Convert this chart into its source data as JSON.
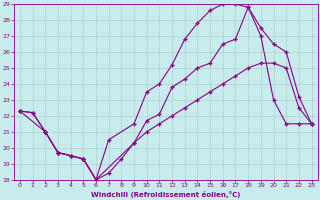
{
  "xlabel": "Windchill (Refroidissement éolien,°C)",
  "bg_color": "#c8ecec",
  "grid_color": "#b0d0d0",
  "line_color": "#880088",
  "xlim": [
    -0.5,
    23.5
  ],
  "ylim": [
    18,
    29
  ],
  "xticks": [
    0,
    1,
    2,
    3,
    4,
    5,
    6,
    7,
    8,
    9,
    10,
    11,
    12,
    13,
    14,
    15,
    16,
    17,
    18,
    19,
    20,
    21,
    22,
    23
  ],
  "yticks": [
    18,
    19,
    20,
    21,
    22,
    23,
    24,
    25,
    26,
    27,
    28,
    29
  ],
  "series": [
    {
      "x": [
        0,
        1,
        2,
        3,
        4,
        5,
        6,
        7,
        8,
        9,
        10,
        11,
        12,
        13,
        14,
        15,
        16,
        17,
        18,
        19,
        20,
        21,
        22,
        23
      ],
      "y": [
        22.3,
        22.2,
        21.0,
        19.7,
        19.5,
        19.3,
        18.0,
        18.4,
        19.3,
        20.3,
        21.0,
        21.5,
        22.0,
        22.5,
        23.0,
        23.5,
        24.0,
        24.5,
        25.0,
        25.3,
        25.3,
        25.0,
        22.5,
        21.5
      ]
    },
    {
      "x": [
        0,
        2,
        3,
        4,
        5,
        6,
        7,
        9,
        10,
        11,
        12,
        13,
        14,
        15,
        16,
        17,
        18,
        19,
        20,
        21,
        22,
        23
      ],
      "y": [
        22.3,
        21.0,
        19.7,
        19.5,
        19.3,
        18.0,
        20.5,
        21.5,
        23.5,
        24.0,
        25.2,
        26.8,
        27.8,
        28.6,
        29.0,
        29.0,
        28.8,
        27.0,
        23.0,
        21.5,
        21.5,
        21.5
      ]
    },
    {
      "x": [
        0,
        1,
        2,
        3,
        4,
        5,
        6,
        9,
        10,
        11,
        12,
        13,
        14,
        15,
        16,
        17,
        18,
        19,
        20,
        21,
        22,
        23
      ],
      "y": [
        22.3,
        22.2,
        21.0,
        19.7,
        19.5,
        19.3,
        18.0,
        20.3,
        21.7,
        22.1,
        23.8,
        24.3,
        25.0,
        25.3,
        26.5,
        26.8,
        28.8,
        27.5,
        26.5,
        26.0,
        23.2,
        21.5
      ]
    }
  ]
}
